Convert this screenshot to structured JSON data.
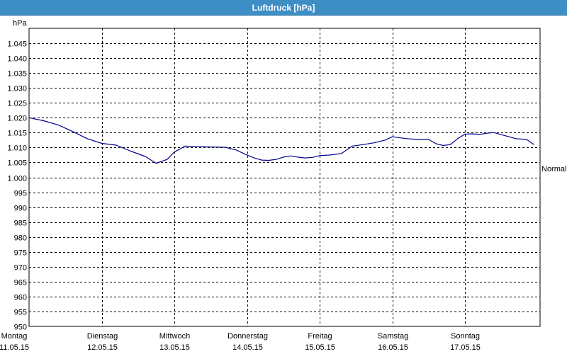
{
  "window": {
    "title": "Luftdruck [hPa]"
  },
  "chart_data": {
    "type": "line",
    "title": "Luftdruck [hPa]",
    "ylabel": "hPa",
    "ylim": [
      950,
      1050
    ],
    "yticks": [
      950,
      955,
      960,
      965,
      970,
      975,
      980,
      985,
      990,
      995,
      1000,
      1005,
      1010,
      1015,
      1020,
      1025,
      1030,
      1035,
      1040,
      1045
    ],
    "ytick_labels": [
      "950",
      "955",
      "960",
      "965",
      "970",
      "975",
      "980",
      "985",
      "990",
      "995",
      "1.000",
      "1.005",
      "1.010",
      "1.015",
      "1.020",
      "1.025",
      "1.030",
      "1.035",
      "1.040",
      "1.045"
    ],
    "x_categories": [
      {
        "day": "Montag",
        "date": "11.05.15"
      },
      {
        "day": "Dienstag",
        "date": "12.05.15"
      },
      {
        "day": "Mittwoch",
        "date": "13.05.15"
      },
      {
        "day": "Donnerstag",
        "date": "14.05.15"
      },
      {
        "day": "Freitag",
        "date": "15.05.15"
      },
      {
        "day": "Samstag",
        "date": "16.05.15"
      },
      {
        "day": "Sonntag",
        "date": "17.05.15"
      }
    ],
    "grid": true,
    "reference_line": {
      "label": "Normal",
      "value": 1003
    },
    "series": [
      {
        "color": "#00008b",
        "points": [
          [
            0.0,
            1020.0
          ],
          [
            0.2,
            1019.0
          ],
          [
            0.4,
            1017.6
          ],
          [
            0.6,
            1015.4
          ],
          [
            0.8,
            1013.0
          ],
          [
            1.0,
            1011.4
          ],
          [
            1.2,
            1010.8
          ],
          [
            1.4,
            1008.8
          ],
          [
            1.6,
            1007.0
          ],
          [
            1.75,
            1004.7
          ],
          [
            1.9,
            1006.0
          ],
          [
            2.0,
            1008.5
          ],
          [
            2.15,
            1010.5
          ],
          [
            2.3,
            1010.3
          ],
          [
            2.5,
            1010.2
          ],
          [
            2.7,
            1010.1
          ],
          [
            2.85,
            1009.2
          ],
          [
            3.0,
            1007.5
          ],
          [
            3.1,
            1006.5
          ],
          [
            3.2,
            1005.8
          ],
          [
            3.3,
            1005.7
          ],
          [
            3.4,
            1006.0
          ],
          [
            3.5,
            1006.8
          ],
          [
            3.6,
            1007.2
          ],
          [
            3.7,
            1006.8
          ],
          [
            3.8,
            1006.5
          ],
          [
            3.9,
            1006.7
          ],
          [
            4.0,
            1007.3
          ],
          [
            4.15,
            1007.5
          ],
          [
            4.3,
            1008.0
          ],
          [
            4.45,
            1010.5
          ],
          [
            4.6,
            1011.0
          ],
          [
            4.75,
            1011.6
          ],
          [
            4.9,
            1012.5
          ],
          [
            5.0,
            1013.6
          ],
          [
            5.2,
            1013.0
          ],
          [
            5.35,
            1012.7
          ],
          [
            5.5,
            1012.7
          ],
          [
            5.6,
            1011.3
          ],
          [
            5.7,
            1010.7
          ],
          [
            5.8,
            1011.0
          ],
          [
            5.9,
            1013.0
          ],
          [
            6.0,
            1014.5
          ],
          [
            6.1,
            1014.6
          ],
          [
            6.2,
            1014.4
          ],
          [
            6.3,
            1014.8
          ],
          [
            6.4,
            1015.0
          ],
          [
            6.55,
            1014.0
          ],
          [
            6.7,
            1013.0
          ],
          [
            6.85,
            1012.7
          ],
          [
            6.95,
            1011.0
          ]
        ]
      }
    ]
  }
}
